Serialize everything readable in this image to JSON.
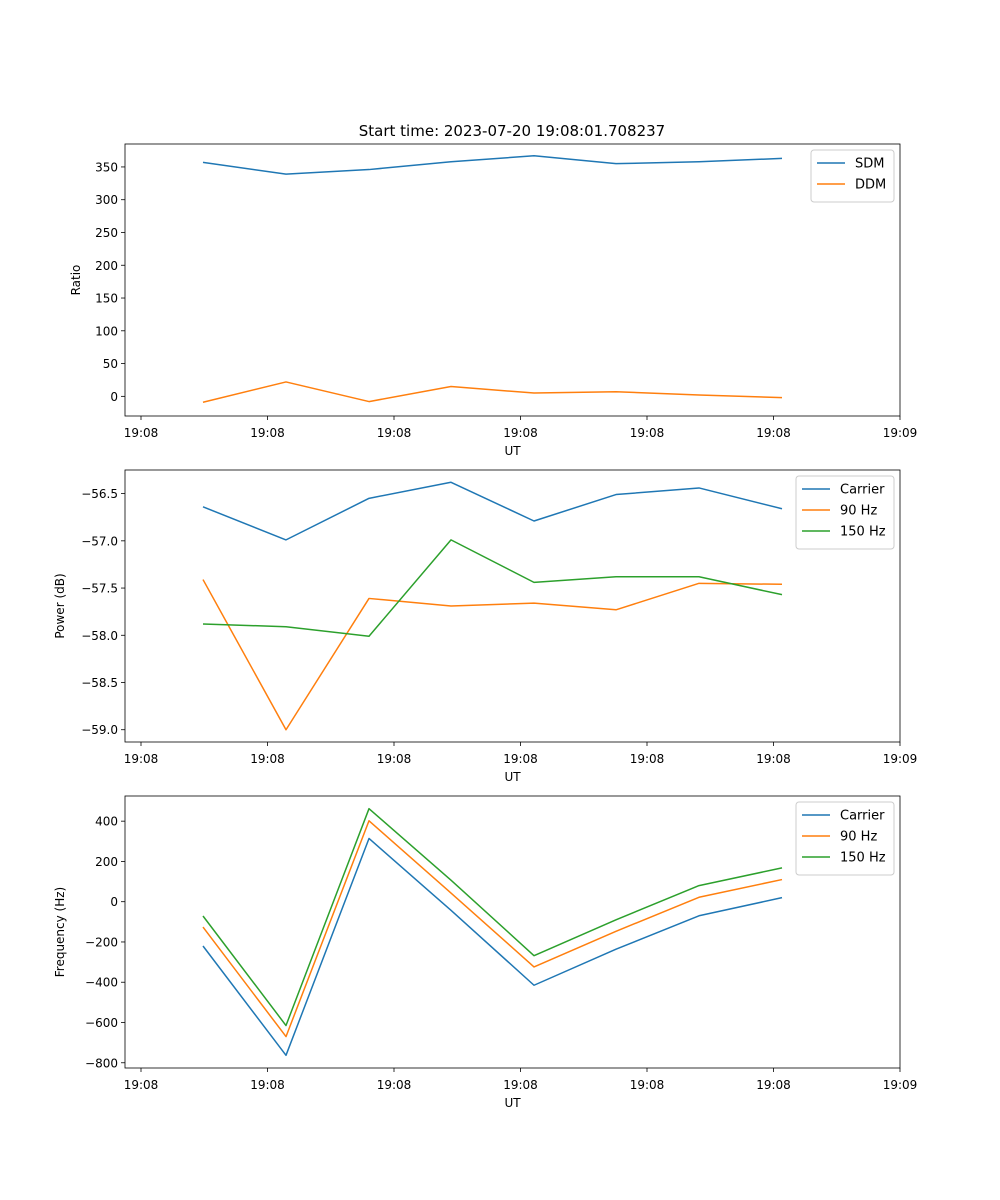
{
  "chart_data": [
    {
      "type": "line",
      "title": "Start time: 2023-07-20 19:08:01.708237",
      "xlabel": "UT",
      "ylabel": "Ratio",
      "x_tick_labels": [
        "19:08",
        "19:08",
        "19:08",
        "19:08",
        "19:08",
        "19:08",
        "19:08"
      ],
      "x_last_tick_label": "19:09",
      "ylim": [
        -30,
        385
      ],
      "yticks": [
        0,
        50,
        100,
        150,
        200,
        250,
        300,
        350
      ],
      "ytick_labels": [
        "0",
        "50",
        "100",
        "150",
        "200",
        "250",
        "300",
        "350"
      ],
      "legend_position": "top-right",
      "series": [
        {
          "name": "SDM",
          "color": "#1f77b4",
          "values": [
            357,
            339,
            346,
            358,
            367,
            355,
            358,
            363
          ]
        },
        {
          "name": "DDM",
          "color": "#ff7f0e",
          "values": [
            -9,
            22,
            -8,
            15,
            5,
            7,
            2,
            -2
          ]
        }
      ]
    },
    {
      "type": "line",
      "title": "",
      "xlabel": "UT",
      "ylabel": "Power (dB)",
      "x_tick_labels": [
        "19:08",
        "19:08",
        "19:08",
        "19:08",
        "19:08",
        "19:08",
        "19:08"
      ],
      "x_last_tick_label": "19:09",
      "ylim": [
        -59.13,
        -56.25
      ],
      "yticks": [
        -59.0,
        -58.5,
        -58.0,
        -57.5,
        -57.0,
        -56.5
      ],
      "ytick_labels": [
        "−59.0",
        "−58.5",
        "−58.0",
        "−57.5",
        "−57.0",
        "−56.5"
      ],
      "legend_position": "top-right",
      "series": [
        {
          "name": "Carrier",
          "color": "#1f77b4",
          "values": [
            -56.64,
            -56.99,
            -56.55,
            -56.38,
            -56.79,
            -56.51,
            -56.44,
            -56.66
          ]
        },
        {
          "name": "90 Hz",
          "color": "#ff7f0e",
          "values": [
            -57.41,
            -59.0,
            -57.61,
            -57.69,
            -57.66,
            -57.73,
            -57.45,
            -57.46
          ]
        },
        {
          "name": "150 Hz",
          "color": "#2ca02c",
          "values": [
            -57.88,
            -57.91,
            -58.01,
            -56.99,
            -57.44,
            -57.38,
            -57.38,
            -57.57
          ]
        }
      ]
    },
    {
      "type": "line",
      "title": "",
      "xlabel": "UT",
      "ylabel": "Frequency (Hz)",
      "x_tick_labels": [
        "19:08",
        "19:08",
        "19:08",
        "19:08",
        "19:08",
        "19:08",
        "19:08"
      ],
      "x_last_tick_label": "19:09",
      "ylim": [
        -826,
        525
      ],
      "yticks": [
        -800,
        -600,
        -400,
        -200,
        0,
        200,
        400
      ],
      "ytick_labels": [
        "−800",
        "−600",
        "−400",
        "−200",
        "0",
        "200",
        "400"
      ],
      "legend_position": "top-right",
      "series": [
        {
          "name": "Carrier",
          "color": "#1f77b4",
          "values": [
            -220,
            -763,
            314,
            -43,
            -415,
            -236,
            -70,
            20
          ]
        },
        {
          "name": "90 Hz",
          "color": "#ff7f0e",
          "values": [
            -126,
            -670,
            402,
            43,
            -324,
            -147,
            22,
            110
          ]
        },
        {
          "name": "150 Hz",
          "color": "#2ca02c",
          "values": [
            -71,
            -615,
            462,
            107,
            -268,
            -90,
            80,
            168
          ]
        }
      ]
    }
  ]
}
